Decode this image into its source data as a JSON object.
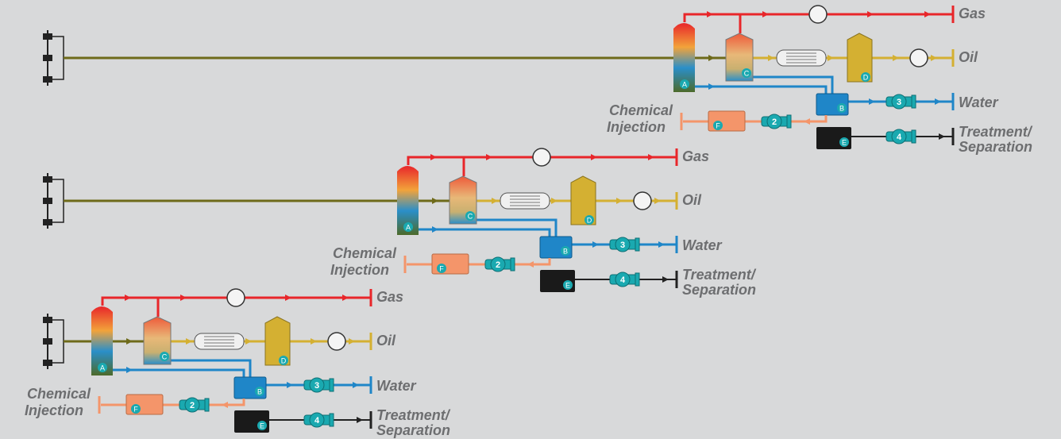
{
  "units": [
    {
      "outputs": {
        "gas": "Gas",
        "oil": "Oil",
        "water": "Water",
        "treatment": [
          "Treatment/",
          "Separation"
        ]
      },
      "chemical_injection": [
        "Chemical",
        "Injection"
      ],
      "equipment": [
        "A",
        "B",
        "C",
        "D",
        "E",
        "F"
      ],
      "pumps": [
        "2",
        "3",
        "4"
      ]
    },
    {
      "outputs": {
        "gas": "Gas",
        "oil": "Oil",
        "water": "Water",
        "treatment": [
          "Treatment/",
          "Separation"
        ]
      },
      "chemical_injection": [
        "Chemical",
        "Injection"
      ],
      "equipment": [
        "A",
        "B",
        "C",
        "D",
        "E",
        "F"
      ],
      "pumps": [
        "2",
        "3",
        "4"
      ]
    },
    {
      "outputs": {
        "gas": "Gas",
        "oil": "Oil",
        "water": "Water",
        "treatment": [
          "Treatment/",
          "Separation"
        ]
      },
      "chemical_injection": [
        "Chemical",
        "Injection"
      ],
      "equipment": [
        "A",
        "B",
        "C",
        "D",
        "E",
        "F"
      ],
      "pumps": [
        "2",
        "3",
        "4"
      ]
    }
  ]
}
